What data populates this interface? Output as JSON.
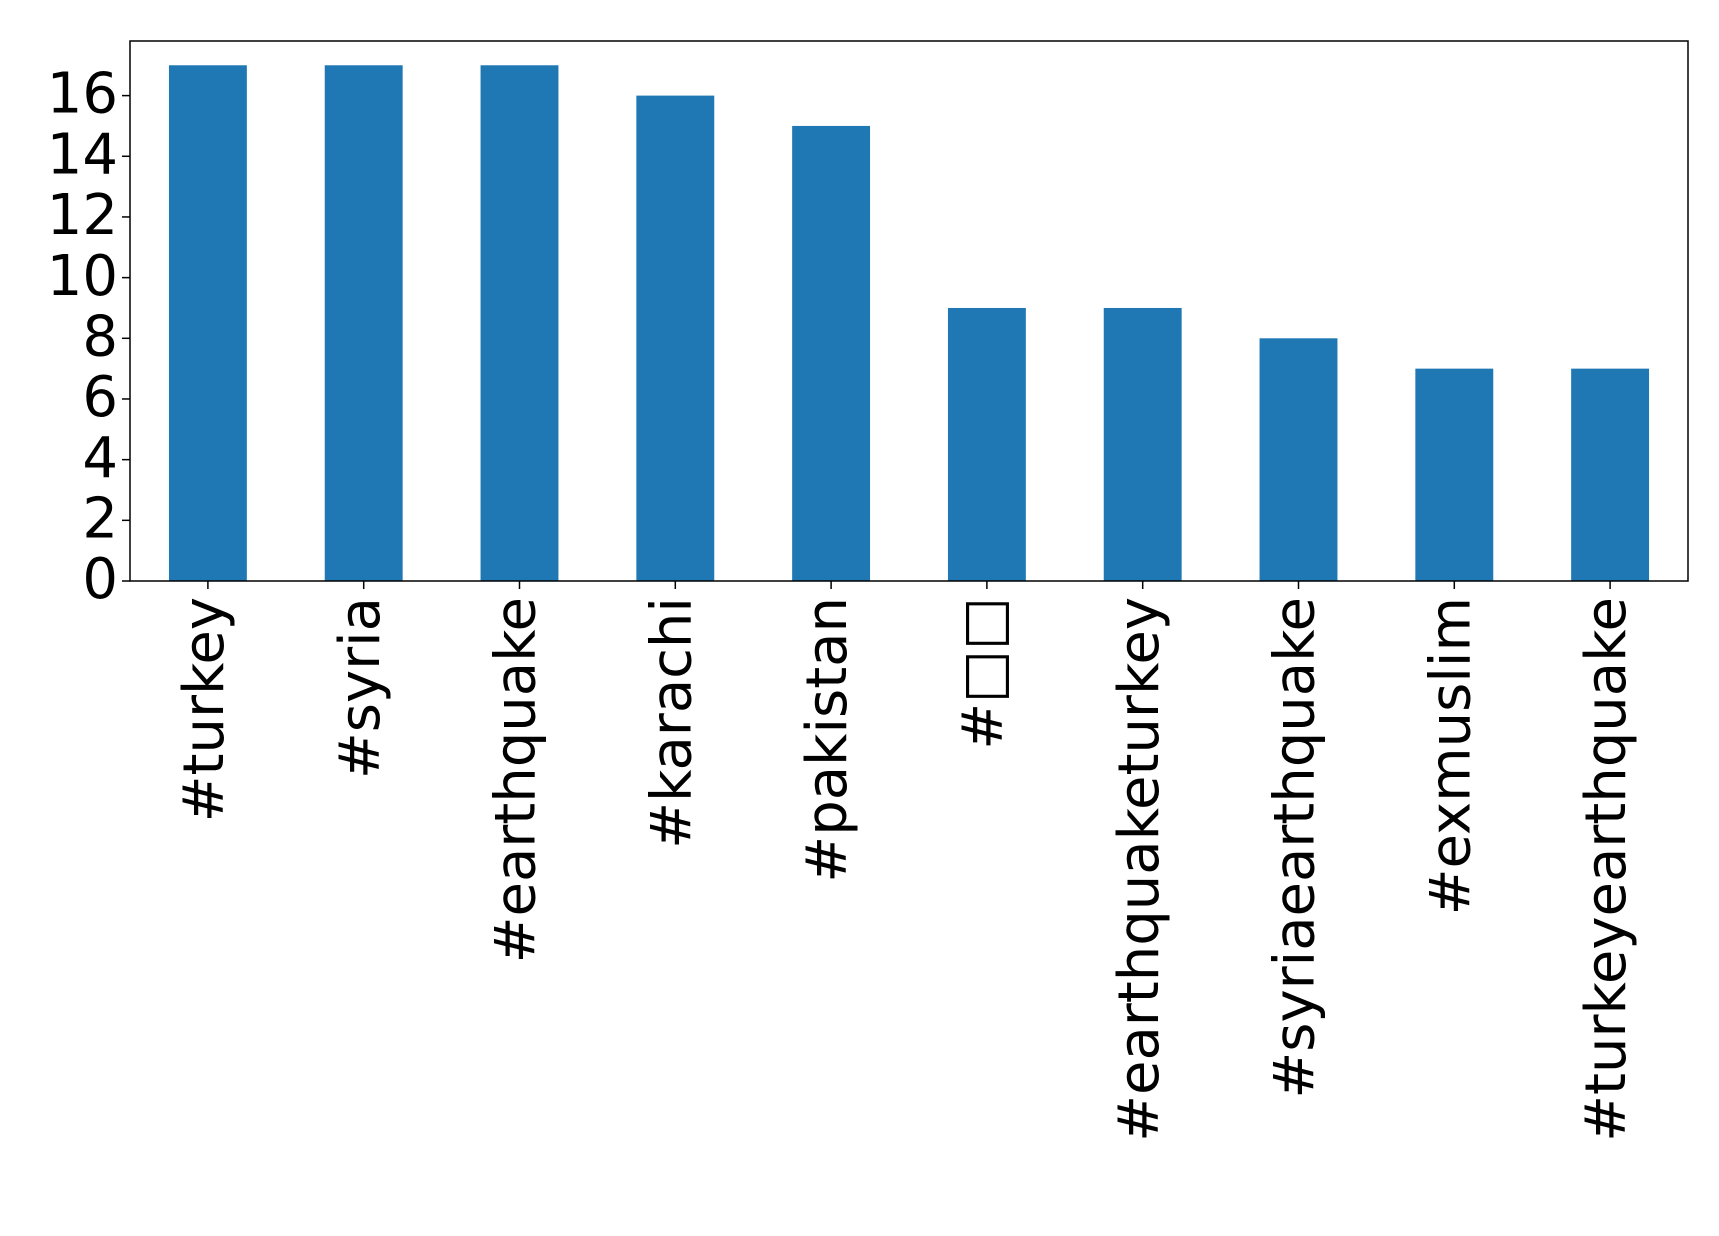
{
  "chart_data": {
    "type": "bar",
    "categories": [
      "#turkey",
      "#syria",
      "#earthquake",
      "#karachi",
      "#pakistan",
      "#□□",
      "#earthquaketurkey",
      "#syriaearthquake",
      "#exmuslim",
      "#turkeyearthquake"
    ],
    "values": [
      17,
      17,
      17,
      16,
      15,
      9,
      9,
      8,
      7,
      7
    ],
    "color": "#1f77b4",
    "ylim": [
      0,
      17.8
    ],
    "yticks": [
      0,
      2,
      4,
      6,
      8,
      10,
      12,
      14,
      16
    ],
    "grid": false
  }
}
